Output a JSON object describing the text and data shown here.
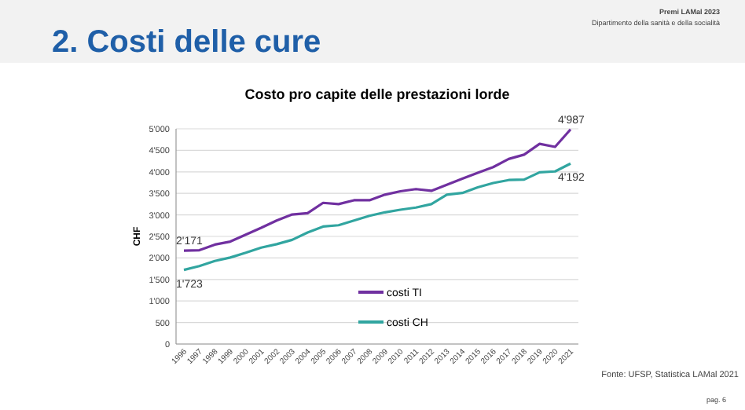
{
  "chart_data": {
    "type": "line",
    "title": "2. Costi delle cure",
    "subtitle": "Costo pro capite delle prestazioni lorde",
    "ylabel": "CHF",
    "annotations": [
      "Premi LAMal 2023",
      "Dipartimento della sanità e della socialità",
      "Fonte: UFSP, Statistica LAMal 2021",
      "pag. 6"
    ],
    "categories": [
      "1996",
      "1997",
      "1998",
      "1999",
      "2000",
      "2001",
      "2002",
      "2003",
      "2004",
      "2005",
      "2006",
      "2007",
      "2008",
      "2009",
      "2010",
      "2011",
      "2012",
      "2013",
      "2014",
      "2015",
      "2016",
      "2017",
      "2018",
      "2019",
      "2020",
      "2021"
    ],
    "series": [
      {
        "name": "costi TI",
        "color": "#7030a0",
        "values": [
          2171,
          2180,
          2310,
          2380,
          2540,
          2700,
          2870,
          3010,
          3040,
          3280,
          3250,
          3340,
          3340,
          3470,
          3550,
          3600,
          3560,
          3700,
          3840,
          3980,
          4110,
          4300,
          4400,
          4650,
          4580,
          4987
        ],
        "value_labels": [
          "2'171",
          null,
          null,
          null,
          null,
          null,
          null,
          null,
          null,
          null,
          null,
          null,
          null,
          null,
          null,
          null,
          null,
          null,
          null,
          null,
          null,
          null,
          null,
          null,
          null,
          "4'987"
        ]
      },
      {
        "name": "costi CH",
        "color": "#31a5a0",
        "values": [
          1723,
          1810,
          1930,
          2010,
          2120,
          2240,
          2320,
          2420,
          2590,
          2730,
          2760,
          2870,
          2980,
          3060,
          3120,
          3170,
          3250,
          3470,
          3510,
          3640,
          3740,
          3810,
          3820,
          3990,
          4010,
          4192
        ],
        "value_labels": [
          "1'723",
          null,
          null,
          null,
          null,
          null,
          null,
          null,
          null,
          null,
          null,
          null,
          null,
          null,
          null,
          null,
          null,
          null,
          null,
          null,
          null,
          null,
          null,
          null,
          null,
          "4'192"
        ]
      }
    ],
    "ylim": [
      0,
      5000
    ],
    "yticks": [
      0,
      500,
      {
        "value": 1000,
        "label": "1'000"
      },
      {
        "value": 1500,
        "label": "1'500"
      },
      {
        "value": 2000,
        "label": "2'000"
      },
      {
        "value": 2500,
        "label": "2'500"
      },
      {
        "value": 3000,
        "label": "3'000"
      },
      {
        "value": 3500,
        "label": "3'500"
      },
      {
        "value": 4000,
        "label": "4'000"
      },
      {
        "value": 4500,
        "label": "4'500"
      },
      {
        "value": 5000,
        "label": "5'000"
      }
    ],
    "grid": "y",
    "legend": "bottom",
    "marker": "none",
    "line_style": "solid"
  }
}
